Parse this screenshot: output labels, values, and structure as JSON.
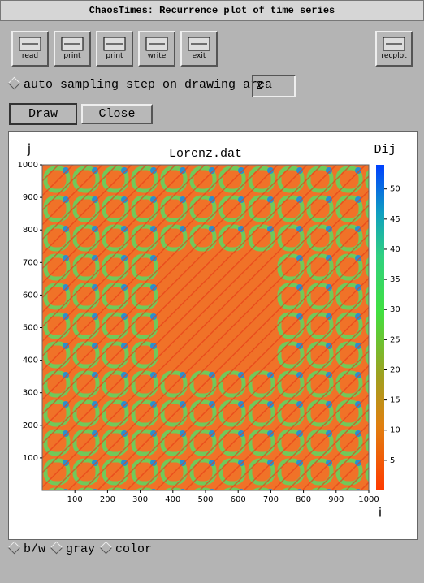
{
  "window": {
    "title": "ChaosTimes: Recurrence plot of time series"
  },
  "toolbar": {
    "buttons": [
      "read",
      "print",
      "print",
      "write",
      "exit"
    ],
    "right_button": "recplot"
  },
  "options": {
    "auto_sampling_label": "auto sampling step on drawing area",
    "sampling_step": "2"
  },
  "actions": [
    "Draw",
    "Close"
  ],
  "plot": {
    "title": "Lorenz.dat",
    "x_label": "i",
    "y_label": "j",
    "colorbar_label": "Dij",
    "xlim": [
      0,
      1000
    ],
    "xticks": [
      100,
      200,
      300,
      400,
      500,
      600,
      700,
      800,
      900,
      1000
    ],
    "ylim": [
      0,
      1000
    ],
    "yticks": [
      100,
      200,
      300,
      400,
      500,
      600,
      700,
      800,
      900,
      1000
    ],
    "colorbar_lim": [
      0,
      54
    ],
    "colorbar_ticks": [
      5,
      10,
      15,
      20,
      25,
      30,
      35,
      40,
      45,
      50
    ]
  },
  "color_modes": [
    "b/w",
    "gray",
    "color"
  ]
}
